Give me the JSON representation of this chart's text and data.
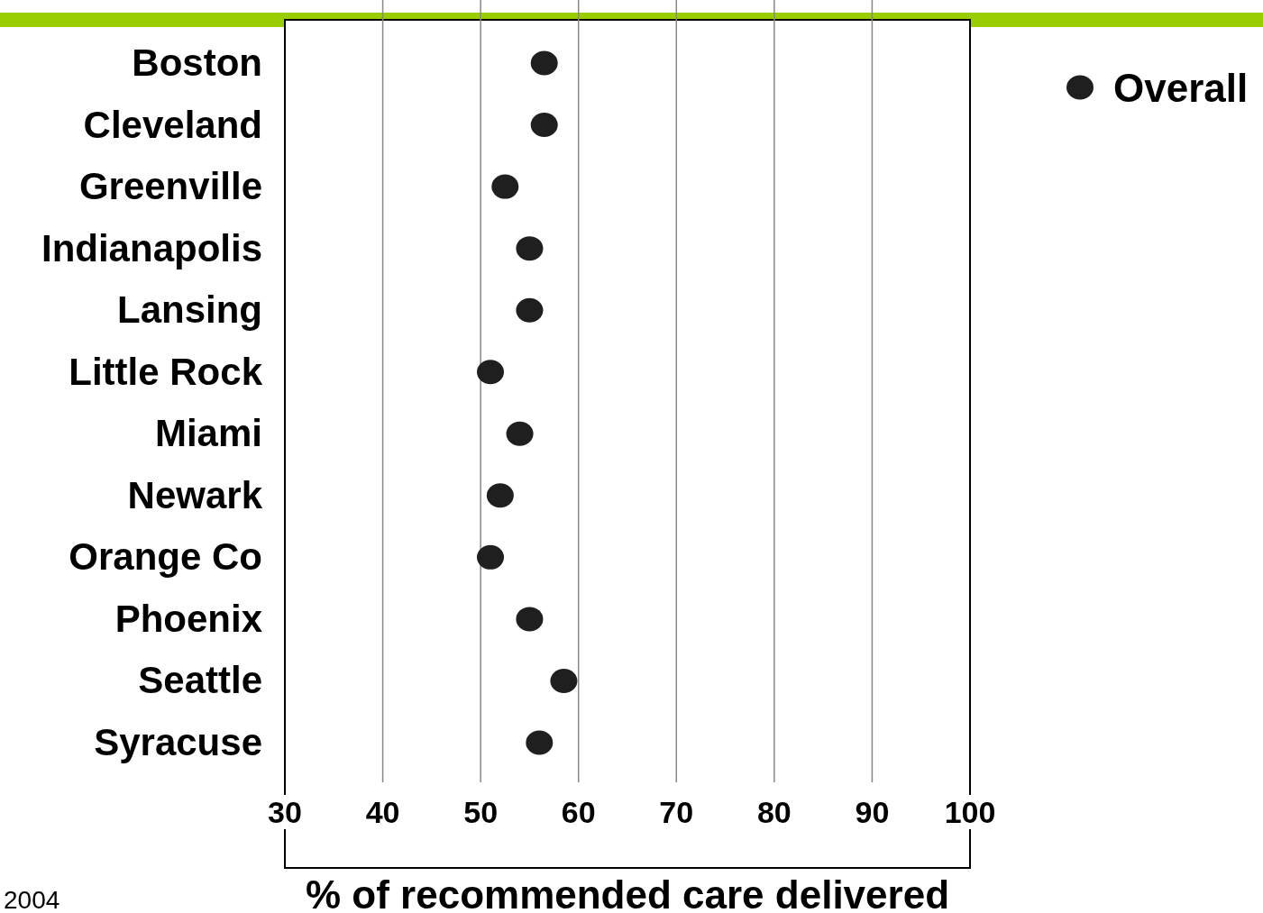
{
  "chart_data": {
    "type": "scatter",
    "xlabel": "% of recommended care delivered",
    "categories": [
      "Boston",
      "Cleveland",
      "Greenville",
      "Indianapolis",
      "Lansing",
      "Little Rock",
      "Miami",
      "Newark",
      "Orange Co",
      "Phoenix",
      "Seattle",
      "Syracuse"
    ],
    "orientation": "horizontal",
    "series": [
      {
        "name": "Overall",
        "color": "#1f1f1f",
        "values": [
          56.5,
          56.5,
          52.5,
          55,
          55,
          51,
          54,
          52,
          51,
          55,
          58.5,
          56
        ]
      }
    ],
    "xlim": [
      30,
      100
    ],
    "xticks": [
      30,
      40,
      50,
      60,
      70,
      80,
      90,
      100
    ],
    "grid": "x",
    "legend": "top right",
    "marker": "circle",
    "annotations": [
      "2004"
    ]
  }
}
